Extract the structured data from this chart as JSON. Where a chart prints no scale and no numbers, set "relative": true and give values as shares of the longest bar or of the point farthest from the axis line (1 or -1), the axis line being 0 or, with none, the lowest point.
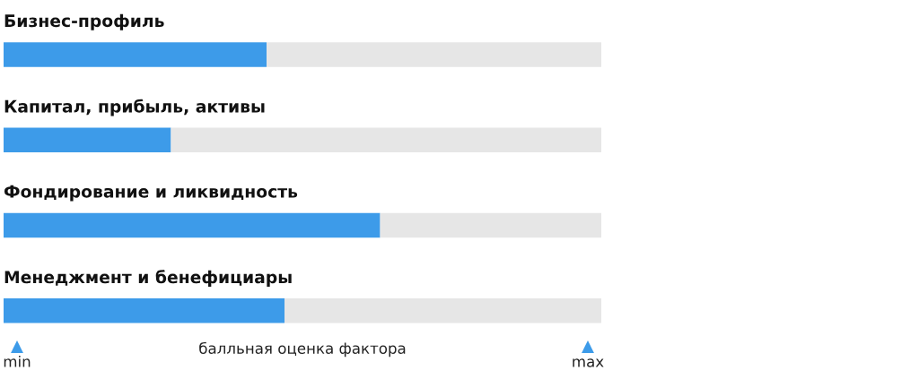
{
  "chart_data": {
    "type": "bar",
    "orientation": "horizontal",
    "stacked": true,
    "categories": [
      "Бизнес-профиль",
      "Капитал, прибыль, активы",
      "Фондирование и ликвидность",
      "Менеджмент и бенефициары"
    ],
    "series": [
      {
        "color": "#3d9be9",
        "values": [
          0.44,
          0.28,
          0.63,
          0.47
        ]
      },
      {
        "color": "#e6e6e6",
        "values": [
          0.56,
          0.72,
          0.37,
          0.53
        ]
      }
    ],
    "xlabel": "балльная оценка фактора",
    "relative": true,
    "annotations": [
      "min",
      "max"
    ],
    "legend": false
  }
}
